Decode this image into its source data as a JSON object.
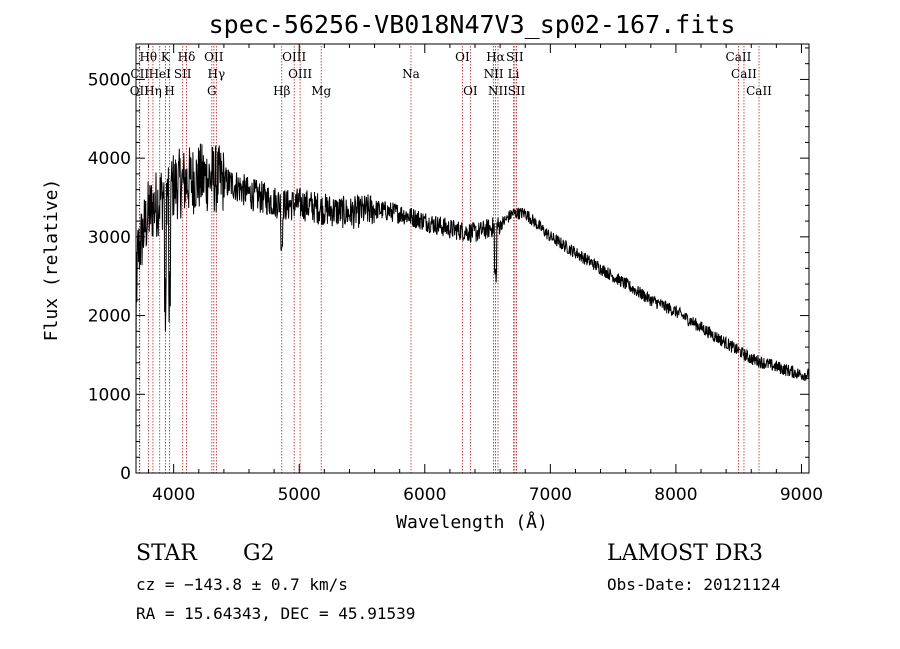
{
  "chart_data": {
    "type": "line",
    "title": "spec-56256-VB018N47V3_sp02-167.fits",
    "xlabel": "Wavelength (Å)",
    "ylabel": "Flux (relative)",
    "xlim": [
      3700,
      9060
    ],
    "ylim": [
      0,
      5450
    ],
    "x_ticks": [
      4000,
      5000,
      6000,
      7000,
      8000,
      9000
    ],
    "y_ticks": [
      0,
      1000,
      2000,
      3000,
      4000,
      5000
    ],
    "spectrum_envelope": {
      "x": [
        3700,
        3750,
        3800,
        3850,
        3900,
        3950,
        4000,
        4100,
        4200,
        4300,
        4400,
        4500,
        4600,
        4700,
        4800,
        4900,
        5000,
        5200,
        5400,
        5600,
        5800,
        6000,
        6200,
        6400,
        6600,
        6700,
        6800,
        7000,
        7200,
        7400,
        7600,
        7800,
        8000,
        8200,
        8400,
        8600,
        8800,
        9000,
        9060
      ],
      "y": [
        2700,
        3000,
        3300,
        3400,
        3500,
        3600,
        3650,
        3700,
        3750,
        3750,
        3700,
        3650,
        3550,
        3500,
        3450,
        3400,
        3420,
        3350,
        3300,
        3350,
        3300,
        3200,
        3100,
        3050,
        3150,
        3300,
        3300,
        3000,
        2800,
        2600,
        2400,
        2200,
        2050,
        1850,
        1650,
        1450,
        1350,
        1250,
        1250
      ]
    },
    "emission_lines": [
      {
        "name": "Hθ",
        "wave": 3798,
        "row": 1
      },
      {
        "name": "K",
        "wave": 3934,
        "row": 1
      },
      {
        "name": "Hδ",
        "wave": 4102,
        "row": 1
      },
      {
        "name": "OII",
        "wave": 4320,
        "row": 1
      },
      {
        "name": "OIII",
        "wave": 4960,
        "row": 1
      },
      {
        "name": "OI",
        "wave": 6300,
        "row": 1
      },
      {
        "name": "Hα",
        "wave": 6563,
        "row": 1
      },
      {
        "name": "SII",
        "wave": 6717,
        "row": 1
      },
      {
        "name": "CaII",
        "wave": 8498,
        "row": 1
      },
      {
        "name": "CII",
        "wave": 3730,
        "row": 2
      },
      {
        "name": "HeI",
        "wave": 3889,
        "row": 2
      },
      {
        "name": "SII",
        "wave": 4072,
        "row": 2
      },
      {
        "name": "Hγ",
        "wave": 4340,
        "row": 2
      },
      {
        "name": "OIII",
        "wave": 5007,
        "row": 2
      },
      {
        "name": "Na",
        "wave": 5890,
        "row": 2
      },
      {
        "name": "NII",
        "wave": 6548,
        "row": 2
      },
      {
        "name": "Li",
        "wave": 6707,
        "row": 2
      },
      {
        "name": "CaII",
        "wave": 8542,
        "row": 2
      },
      {
        "name": "OII",
        "wave": 3727,
        "row": 3
      },
      {
        "name": "Hη",
        "wave": 3835,
        "row": 3
      },
      {
        "name": "H",
        "wave": 3968,
        "row": 3
      },
      {
        "name": "G",
        "wave": 4304,
        "row": 3
      },
      {
        "name": "Hβ",
        "wave": 4861,
        "row": 3
      },
      {
        "name": "Mg",
        "wave": 5175,
        "row": 3
      },
      {
        "name": "OI",
        "wave": 6363,
        "row": 3
      },
      {
        "name": "NII",
        "wave": 6583,
        "row": 3
      },
      {
        "name": "SII",
        "wave": 6731,
        "row": 3
      },
      {
        "name": "CaII",
        "wave": 8662,
        "row": 3
      }
    ]
  },
  "info": {
    "class": "STAR",
    "subclass": "G2",
    "cz": "cz = −143.8 ± 0.7 km/s",
    "coords": "RA =  15.64343, DEC =  45.91539",
    "survey": "LAMOST DR3",
    "obs_date": "Obs-Date: 20121124"
  }
}
